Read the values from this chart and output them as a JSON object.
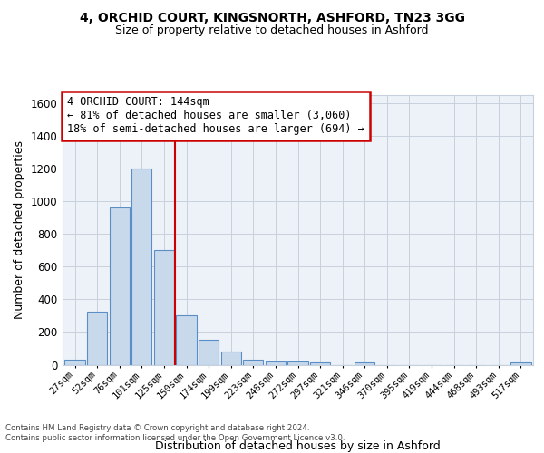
{
  "title1": "4, ORCHID COURT, KINGSNORTH, ASHFORD, TN23 3GG",
  "title2": "Size of property relative to detached houses in Ashford",
  "xlabel": "Distribution of detached houses by size in Ashford",
  "ylabel": "Number of detached properties",
  "bar_labels": [
    "27sqm",
    "52sqm",
    "76sqm",
    "101sqm",
    "125sqm",
    "150sqm",
    "174sqm",
    "199sqm",
    "223sqm",
    "248sqm",
    "272sqm",
    "297sqm",
    "321sqm",
    "346sqm",
    "370sqm",
    "395sqm",
    "419sqm",
    "444sqm",
    "468sqm",
    "493sqm",
    "517sqm"
  ],
  "bar_values": [
    28,
    325,
    965,
    1200,
    700,
    305,
    155,
    80,
    28,
    18,
    18,
    15,
    0,
    12,
    0,
    0,
    0,
    0,
    0,
    0,
    15
  ],
  "bar_color": "#c9d9ec",
  "bar_edge_color": "#5b8ec4",
  "vline_x": 4.5,
  "vline_color": "#cc0000",
  "annotation_text": "4 ORCHID COURT: 144sqm\n← 81% of detached houses are smaller (3,060)\n18% of semi-detached houses are larger (694) →",
  "annotation_box_color": "#ffffff",
  "annotation_box_edge_color": "#cc0000",
  "ylim": [
    0,
    1650
  ],
  "yticks": [
    0,
    200,
    400,
    600,
    800,
    1000,
    1200,
    1400,
    1600
  ],
  "footer_text": "Contains HM Land Registry data © Crown copyright and database right 2024.\nContains public sector information licensed under the Open Government Licence v3.0.",
  "bg_color": "#ffffff",
  "ax_bg_color": "#edf2f9",
  "grid_color": "#c8d0dc"
}
